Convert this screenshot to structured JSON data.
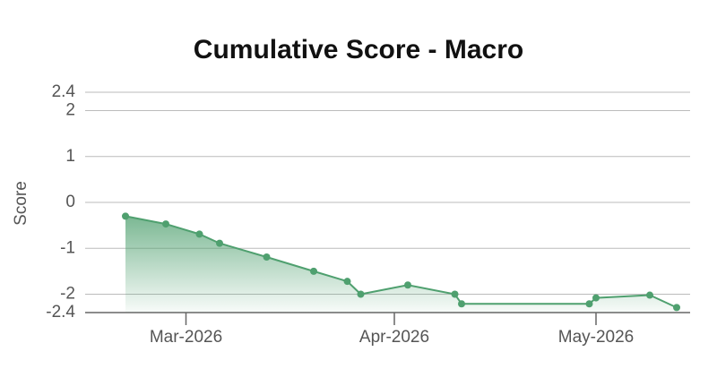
{
  "chart_data": {
    "type": "line",
    "title": "Cumulative Score - Macro",
    "y_label": "Score",
    "x": [
      51,
      57,
      62,
      65,
      72,
      79,
      84,
      86,
      93,
      100,
      101,
      120,
      121,
      129,
      133
    ],
    "series": [
      {
        "color": "#4fa06f",
        "values": [
          -0.3,
          -0.47,
          -0.69,
          -0.89,
          -1.19,
          -1.5,
          -1.72,
          -2.0,
          -1.8,
          -2.0,
          -2.21,
          -2.21,
          -2.08,
          -2.02,
          -2.29
        ]
      }
    ],
    "xlim": [
      45,
      135
    ],
    "xticks": [
      {
        "value": 60,
        "label": "Mar-2026"
      },
      {
        "value": 91,
        "label": "Apr-2026"
      },
      {
        "value": 121,
        "label": "May-2026"
      }
    ],
    "ylim": [
      -2.4,
      2.4
    ],
    "yticks": [
      2.4,
      2,
      1,
      0,
      -1,
      -2,
      -2.4
    ],
    "grid": true,
    "area": true
  }
}
